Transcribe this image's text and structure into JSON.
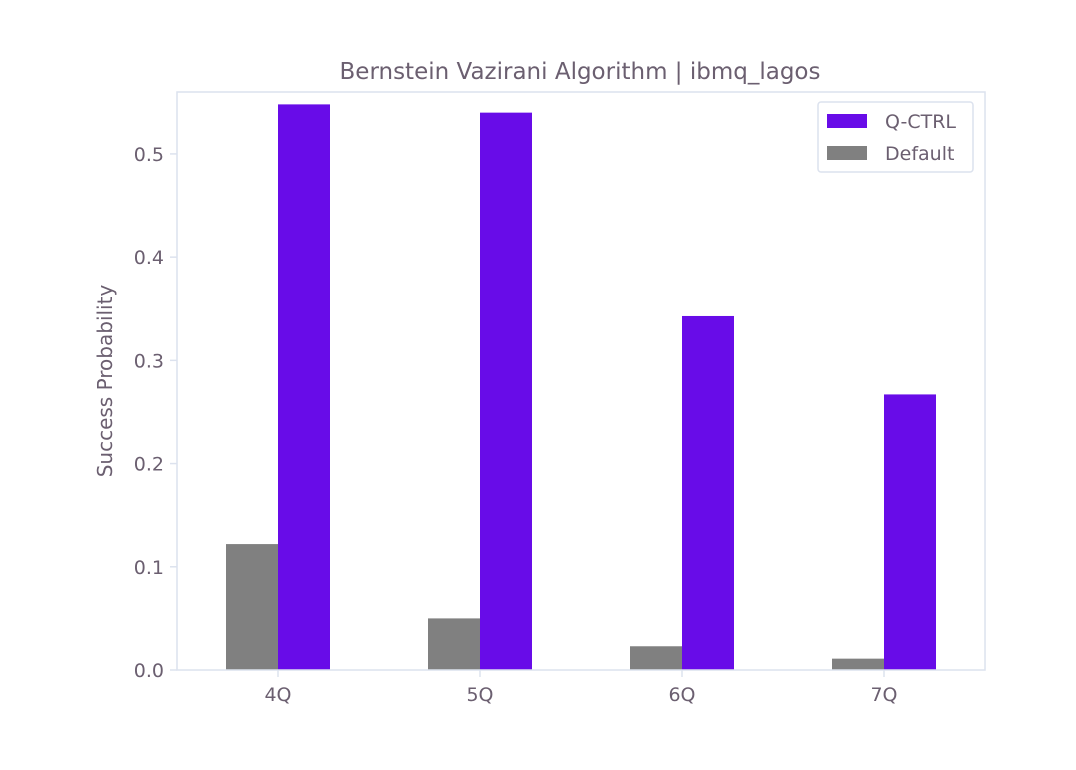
{
  "chart_data": {
    "type": "bar",
    "title": "Bernstein Vazirani Algorithm | ibmq_lagos",
    "xlabel": "",
    "ylabel": "Success Probability",
    "categories": [
      "4Q",
      "5Q",
      "6Q",
      "7Q"
    ],
    "series": [
      {
        "name": "Default",
        "color": "#808080",
        "values": [
          0.122,
          0.05,
          0.023,
          0.011
        ]
      },
      {
        "name": "Q-CTRL",
        "color": "#680ce8",
        "values": [
          0.548,
          0.54,
          0.343,
          0.267
        ]
      }
    ],
    "legend_order": [
      "Q-CTRL",
      "Default"
    ],
    "ylim": [
      0,
      0.56
    ],
    "yticks": [
      0.0,
      0.1,
      0.2,
      0.3,
      0.4,
      0.5
    ],
    "ytick_labels": [
      "0.0",
      "0.1",
      "0.2",
      "0.3",
      "0.4",
      "0.5"
    ],
    "grid": false,
    "legend_position": "top-right",
    "axis_color": "#dce2ee",
    "text_color": "#6b5f70"
  }
}
